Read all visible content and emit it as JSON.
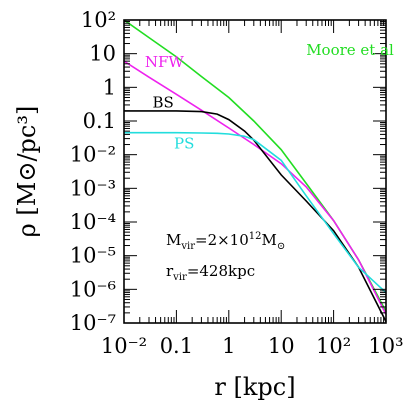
{
  "chart_data": {
    "type": "line",
    "title": "",
    "xlabel": "r [kpc]",
    "ylabel": "ρ [M⊙/pc³]",
    "xscale": "log",
    "yscale": "log",
    "xlim": [
      0.01,
      1000
    ],
    "ylim": [
      1e-07,
      100
    ],
    "x_ticks": [
      "10⁻²",
      "0.1",
      "1",
      "10",
      "10²",
      "10³"
    ],
    "y_ticks": [
      "10²",
      "10",
      "1",
      "0.1",
      "10⁻²",
      "10⁻³",
      "10⁻⁴",
      "10⁻⁵",
      "10⁻⁶",
      "10⁻⁷"
    ],
    "grid": false,
    "annotations": [
      {
        "base": "M",
        "sub": "vir",
        "text": "=2×10",
        "sup": "12",
        "tail": "M",
        "tailsub": "⊙"
      },
      {
        "base": "r",
        "sub": "vir",
        "text": "=428kpc"
      }
    ],
    "series": [
      {
        "name": "Moore et al",
        "color": "#22dd22",
        "x": [
          0.01,
          0.03,
          0.1,
          0.3,
          1,
          3,
          10,
          30,
          100,
          300,
          1000
        ],
        "y": [
          100,
          30,
          8,
          2.1,
          0.5,
          0.1,
          0.014,
          0.0014,
          0.00011,
          7.5e-06,
          2.2e-07
        ]
      },
      {
        "name": "NFW",
        "color": "#ee22ee",
        "x": [
          0.01,
          0.03,
          0.1,
          0.3,
          1,
          3,
          10,
          30,
          100,
          300,
          1000
        ],
        "y": [
          6,
          2,
          0.62,
          0.21,
          0.062,
          0.02,
          0.0054,
          0.0011,
          0.00011,
          7.5e-06,
          1.8e-07
        ]
      },
      {
        "name": "BS",
        "color": "#000000",
        "x": [
          0.01,
          0.03,
          0.1,
          0.3,
          0.6,
          1,
          2,
          3,
          10,
          30,
          100,
          300,
          1000
        ],
        "y": [
          0.2,
          0.2,
          0.2,
          0.19,
          0.16,
          0.11,
          0.05,
          0.027,
          0.0025,
          0.00042,
          5.5e-05,
          4.5e-06,
          1.1e-07
        ]
      },
      {
        "name": "PS",
        "color": "#22dddd",
        "x": [
          0.01,
          0.03,
          0.1,
          0.3,
          0.6,
          1,
          2,
          3,
          10,
          30,
          100,
          300,
          1000
        ],
        "y": [
          0.045,
          0.045,
          0.045,
          0.044,
          0.043,
          0.041,
          0.035,
          0.028,
          0.0068,
          0.0006,
          4.5e-05,
          4.5e-06,
          8e-07
        ]
      }
    ],
    "series_labels": [
      {
        "series": "Moore et al",
        "x": 30,
        "y": 9
      },
      {
        "series": "NFW",
        "x": 0.025,
        "y": 4
      },
      {
        "series": "BS",
        "x": 0.035,
        "y": 0.25
      },
      {
        "series": "PS",
        "x": 0.09,
        "y": 0.015
      }
    ]
  }
}
